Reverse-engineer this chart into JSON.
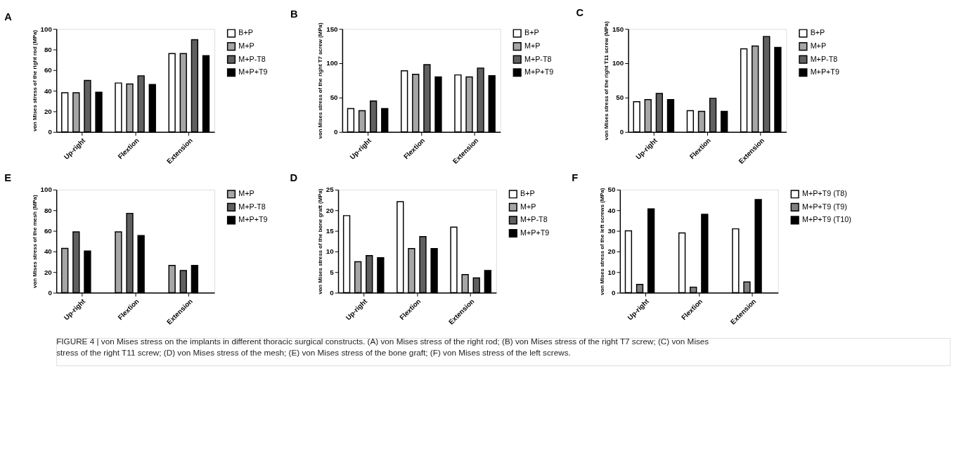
{
  "chart_data": [
    {
      "type": "bar",
      "title": "A",
      "ylabel": "von Mises stress of the right rod (MPa)",
      "categories": [
        "Up-right",
        "Flextion",
        "Extension"
      ],
      "ylim": [
        0,
        100
      ],
      "yticks": [
        0,
        20,
        40,
        60,
        80,
        100
      ],
      "grid": false,
      "legend": "right",
      "annotations": [
        "FIGURE 4 | von Mises stress on the implants in different thoracic surgical constructs. (A) von Mises stress of the right rod; (B) von Mises stress of the right T7 screw; (C) von Mises stress of the right T11 screw; (D) von Mises stress of the mesh; (E) von Mises stress of the bone graft; (F) von Mises stress of the left screws."
      ],
      "series": [
        {
          "name": "B+P",
          "color": "#ffffff",
          "values": [
            38,
            47.5,
            76
          ]
        },
        {
          "name": "M+P",
          "color": "#a6a6a6",
          "values": [
            38,
            46.5,
            76
          ]
        },
        {
          "name": "M+P-T8",
          "color": "#606060",
          "values": [
            50,
            54.5,
            89.5
          ]
        },
        {
          "name": "M+P+T9",
          "color": "#000000",
          "values": [
            38.5,
            46,
            74
          ]
        }
      ]
    },
    {
      "type": "bar",
      "title": "B",
      "ylabel": "von Mises stress of the right T7 screw (MPa)",
      "categories": [
        "Up-right",
        "Flextion",
        "Extension"
      ],
      "ylim": [
        0,
        150
      ],
      "yticks": [
        0,
        50,
        100,
        150
      ],
      "grid": false,
      "legend": "right",
      "series": [
        {
          "name": "B+P",
          "color": "#ffffff",
          "values": [
            34,
            89,
            83
          ]
        },
        {
          "name": "M+P",
          "color": "#a6a6a6",
          "values": [
            31,
            84,
            80
          ]
        },
        {
          "name": "M+P-T8",
          "color": "#606060",
          "values": [
            45,
            98,
            93
          ]
        },
        {
          "name": "M+P+T9",
          "color": "#000000",
          "values": [
            34,
            80,
            82
          ]
        }
      ]
    },
    {
      "type": "bar",
      "title": "C",
      "ylabel": "von Mises stress of the right T11 screw (MPa)",
      "categories": [
        "Up-right",
        "Flextion",
        "Extension"
      ],
      "ylim": [
        0,
        150
      ],
      "yticks": [
        0,
        50,
        100,
        150
      ],
      "grid": false,
      "legend": "right",
      "series": [
        {
          "name": "B+P",
          "color": "#ffffff",
          "values": [
            44,
            31,
            121
          ]
        },
        {
          "name": "M+P",
          "color": "#a6a6a6",
          "values": [
            47,
            30,
            125
          ]
        },
        {
          "name": "M+P-T8",
          "color": "#606060",
          "values": [
            56,
            49,
            139
          ]
        },
        {
          "name": "M+P+T9",
          "color": "#000000",
          "values": [
            47,
            30,
            123
          ]
        }
      ]
    },
    {
      "type": "bar",
      "title": "E",
      "ylabel": "von Mises stress of the mesh (MPa)",
      "categories": [
        "Up-right",
        "Flextion",
        "Extension"
      ],
      "ylim": [
        0,
        100
      ],
      "yticks": [
        0,
        20,
        40,
        60,
        80,
        100
      ],
      "grid": false,
      "legend": "right",
      "series": [
        {
          "name": "M+P",
          "color": "#a6a6a6",
          "values": [
            43,
            59,
            26.5
          ]
        },
        {
          "name": "M+P-T8",
          "color": "#606060",
          "values": [
            59,
            77,
            21.5
          ]
        },
        {
          "name": "M+P+T9",
          "color": "#000000",
          "values": [
            40.5,
            55.5,
            26.5
          ]
        }
      ]
    },
    {
      "type": "bar",
      "title": "D",
      "ylabel": "von Mises stress of the bone graft (MPa)",
      "categories": [
        "Up-right",
        "Flextion",
        "Extension"
      ],
      "ylim": [
        0,
        25
      ],
      "yticks": [
        0,
        5,
        10,
        15,
        20,
        25
      ],
      "grid": false,
      "legend": "right",
      "series": [
        {
          "name": "B+P",
          "color": "#ffffff",
          "values": [
            18.7,
            22.1,
            15.9
          ]
        },
        {
          "name": "M+P",
          "color": "#a6a6a6",
          "values": [
            7.5,
            10.7,
            4.4
          ]
        },
        {
          "name": "M+P-T8",
          "color": "#606060",
          "values": [
            9,
            13.6,
            3.6
          ]
        },
        {
          "name": "M+P+T9",
          "color": "#000000",
          "values": [
            8.5,
            10.7,
            5.4
          ]
        }
      ]
    },
    {
      "type": "bar",
      "title": "F",
      "ylabel": "von Mises stress of the left screws (MPa)",
      "categories": [
        "Up-right",
        "Flextion",
        "Extension"
      ],
      "ylim": [
        0,
        50
      ],
      "yticks": [
        0,
        10,
        20,
        30,
        40,
        50
      ],
      "grid": false,
      "legend": "right",
      "series": [
        {
          "name": "M+P+T9 (T8)",
          "color": "#ffffff",
          "values": [
            30,
            29,
            31
          ]
        },
        {
          "name": "M+P+T9 (T9)",
          "color": "#808080",
          "values": [
            4,
            2.7,
            5.2
          ]
        },
        {
          "name": "M+P+T9 (T10)",
          "color": "#000000",
          "values": [
            40.7,
            38,
            45.2
          ]
        }
      ]
    }
  ]
}
